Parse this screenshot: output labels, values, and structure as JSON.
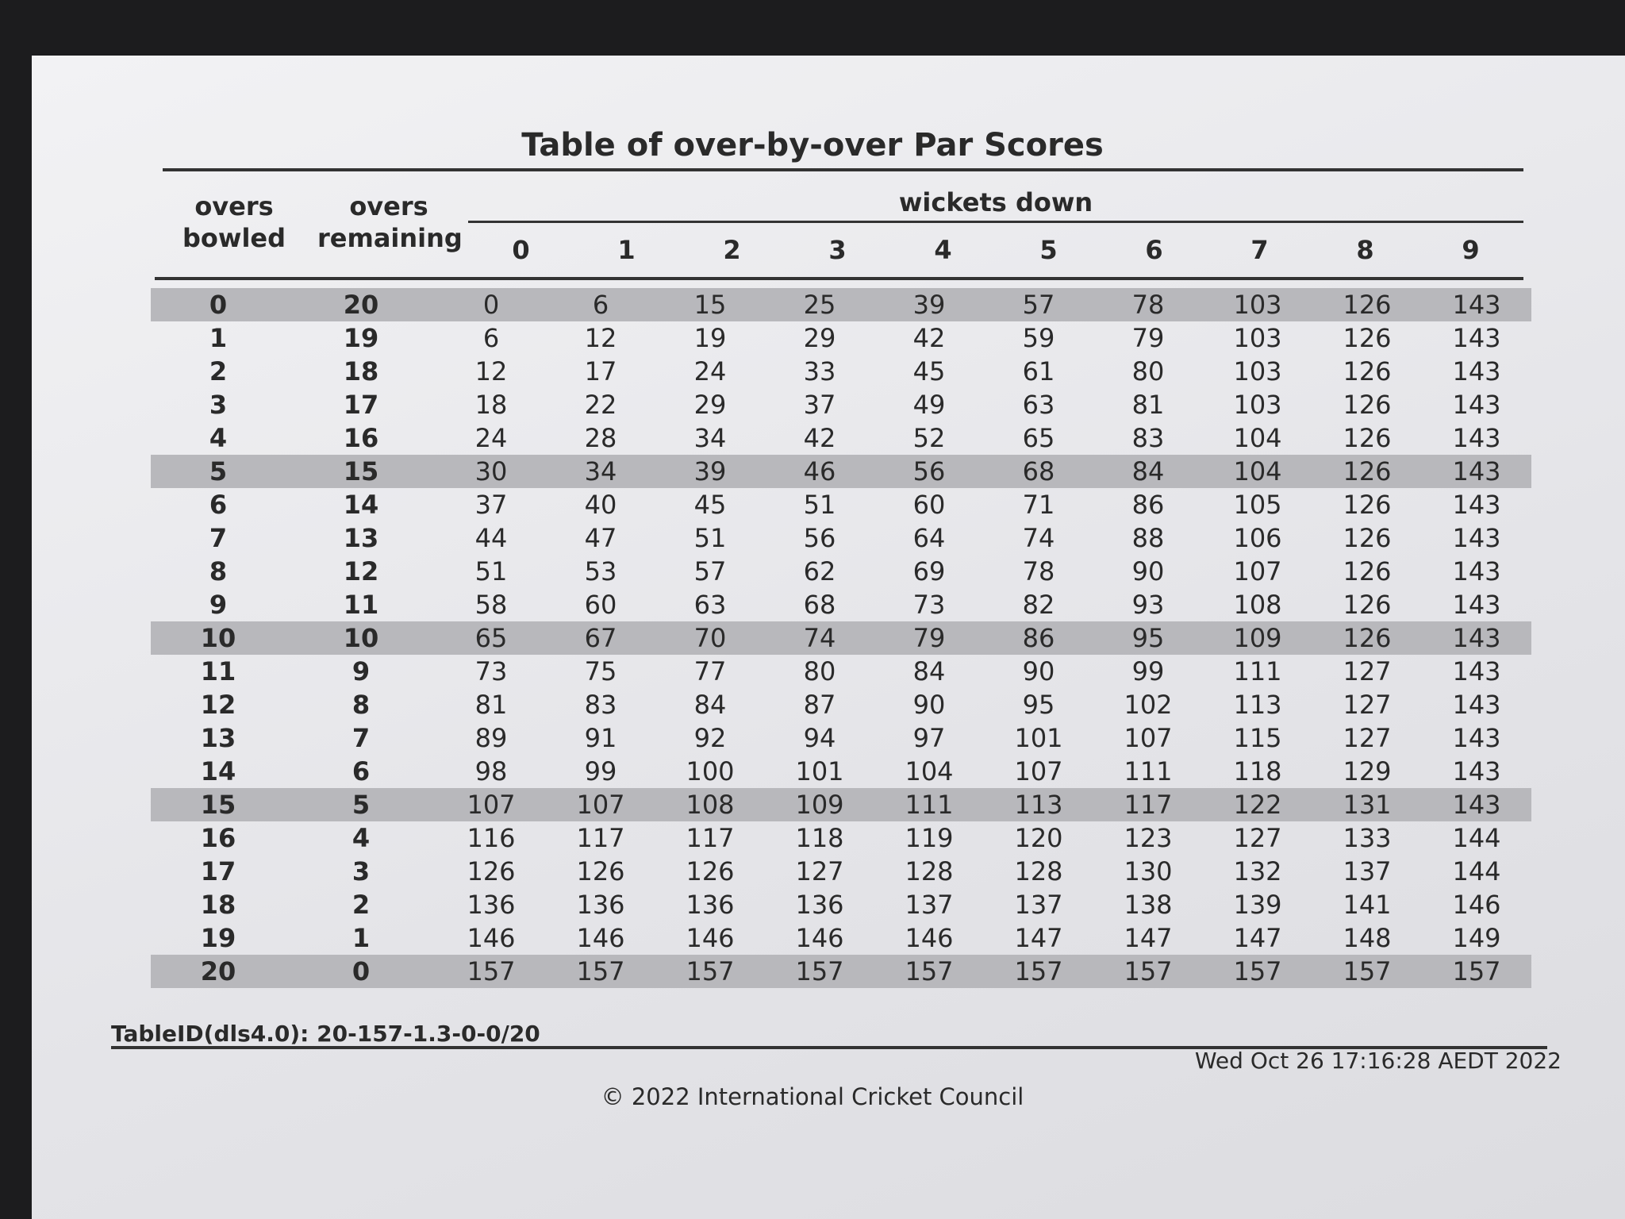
{
  "title": "Table of over-by-over Par Scores",
  "header": {
    "overs_bowled": "overs bowled",
    "overs_remaining": "overs remaining",
    "wickets_down": "wickets down",
    "wickets": [
      0,
      1,
      2,
      3,
      4,
      5,
      6,
      7,
      8,
      9
    ]
  },
  "table": {
    "rows": [
      [
        0,
        20,
        0,
        6,
        15,
        25,
        39,
        57,
        78,
        103,
        126,
        143
      ],
      [
        1,
        19,
        6,
        12,
        19,
        29,
        42,
        59,
        79,
        103,
        126,
        143
      ],
      [
        2,
        18,
        12,
        17,
        24,
        33,
        45,
        61,
        80,
        103,
        126,
        143
      ],
      [
        3,
        17,
        18,
        22,
        29,
        37,
        49,
        63,
        81,
        103,
        126,
        143
      ],
      [
        4,
        16,
        24,
        28,
        34,
        42,
        52,
        65,
        83,
        104,
        126,
        143
      ],
      [
        5,
        15,
        30,
        34,
        39,
        46,
        56,
        68,
        84,
        104,
        126,
        143
      ],
      [
        6,
        14,
        37,
        40,
        45,
        51,
        60,
        71,
        86,
        105,
        126,
        143
      ],
      [
        7,
        13,
        44,
        47,
        51,
        56,
        64,
        74,
        88,
        106,
        126,
        143
      ],
      [
        8,
        12,
        51,
        53,
        57,
        62,
        69,
        78,
        90,
        107,
        126,
        143
      ],
      [
        9,
        11,
        58,
        60,
        63,
        68,
        73,
        82,
        93,
        108,
        126,
        143
      ],
      [
        10,
        10,
        65,
        67,
        70,
        74,
        79,
        86,
        95,
        109,
        126,
        143
      ],
      [
        11,
        9,
        73,
        75,
        77,
        80,
        84,
        90,
        99,
        111,
        127,
        143
      ],
      [
        12,
        8,
        81,
        83,
        84,
        87,
        90,
        95,
        102,
        113,
        127,
        143
      ],
      [
        13,
        7,
        89,
        91,
        92,
        94,
        97,
        101,
        107,
        115,
        127,
        143
      ],
      [
        14,
        6,
        98,
        99,
        100,
        101,
        104,
        107,
        111,
        118,
        129,
        143
      ],
      [
        15,
        5,
        107,
        107,
        108,
        109,
        111,
        113,
        117,
        122,
        131,
        143
      ],
      [
        16,
        4,
        116,
        117,
        117,
        118,
        119,
        120,
        123,
        127,
        133,
        144
      ],
      [
        17,
        3,
        126,
        126,
        126,
        127,
        128,
        128,
        130,
        132,
        137,
        144
      ],
      [
        18,
        2,
        136,
        136,
        136,
        136,
        137,
        137,
        138,
        139,
        141,
        146
      ],
      [
        19,
        1,
        146,
        146,
        146,
        146,
        146,
        147,
        147,
        147,
        148,
        149
      ],
      [
        20,
        0,
        157,
        157,
        157,
        157,
        157,
        157,
        157,
        157,
        157,
        157
      ]
    ]
  },
  "footer": {
    "table_id": "TableID(dls4.0): 20-157-1.3-0-0/20",
    "timestamp": "Wed Oct 26 17:16:28 AEDT 2022",
    "copyright": "© 2022 International Cricket Council"
  }
}
